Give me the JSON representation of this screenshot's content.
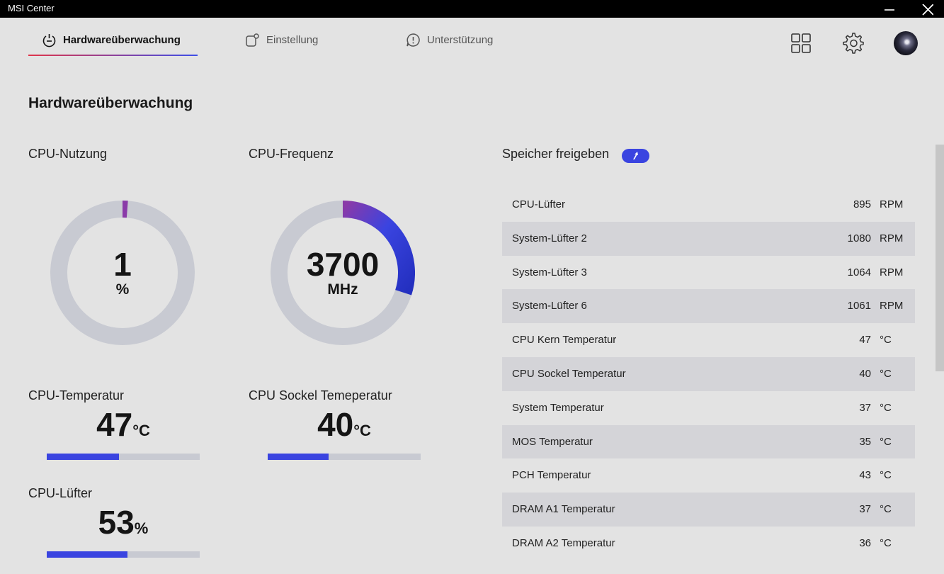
{
  "window": {
    "title": "MSI Center"
  },
  "nav": {
    "tabs": [
      {
        "label": "Hardwareüberwachung",
        "icon": "monitor-power-icon",
        "active": true
      },
      {
        "label": "Einstellung",
        "icon": "settings-box-icon",
        "active": false
      },
      {
        "label": "Unterstützung",
        "icon": "support-chat-icon",
        "active": false
      }
    ],
    "icons": [
      "grid-apps-icon",
      "gear-icon",
      "avatar"
    ]
  },
  "page": {
    "title": "Hardwareüberwachung"
  },
  "cpu_usage": {
    "label": "CPU-Nutzung",
    "value": "1",
    "unit": "%",
    "fraction": 0.01
  },
  "cpu_freq": {
    "label": "CPU-Frequenz",
    "value": "3700",
    "unit": "MHz",
    "fraction": 0.3
  },
  "cpu_temp": {
    "label": "CPU-Temperatur",
    "value": "47",
    "unit": "°C",
    "fraction": 0.47
  },
  "socket_temp": {
    "label": "CPU Sockel Temeperatur",
    "value": "40",
    "unit": "°C",
    "fraction": 0.4
  },
  "cpu_fan": {
    "label": "CPU-Lüfter",
    "value": "53",
    "unit": "%",
    "fraction": 0.53
  },
  "memory": {
    "label": "Speicher freigeben"
  },
  "sensors": [
    {
      "name": "CPU-Lüfter",
      "value": "895",
      "unit": "RPM"
    },
    {
      "name": "System-Lüfter 2",
      "value": "1080",
      "unit": "RPM"
    },
    {
      "name": "System-Lüfter 3",
      "value": "1064",
      "unit": "RPM"
    },
    {
      "name": "System-Lüfter 6",
      "value": "1061",
      "unit": "RPM"
    },
    {
      "name": "CPU Kern Temperatur",
      "value": "47",
      "unit": "°C"
    },
    {
      "name": "CPU Sockel Temperatur",
      "value": "40",
      "unit": "°C"
    },
    {
      "name": "System Temperatur",
      "value": "37",
      "unit": "°C"
    },
    {
      "name": "MOS Temperatur",
      "value": "35",
      "unit": "°C"
    },
    {
      "name": "PCH Temperatur",
      "value": "43",
      "unit": "°C"
    },
    {
      "name": "DRAM A1 Temperatur",
      "value": "37",
      "unit": "°C"
    },
    {
      "name": "DRAM A2 Temperatur",
      "value": "36",
      "unit": "°C"
    }
  ],
  "colors": {
    "accent": "#3a44e0",
    "track": "#c8cad2",
    "gauge_gradient_start": "#8a3aa8"
  }
}
